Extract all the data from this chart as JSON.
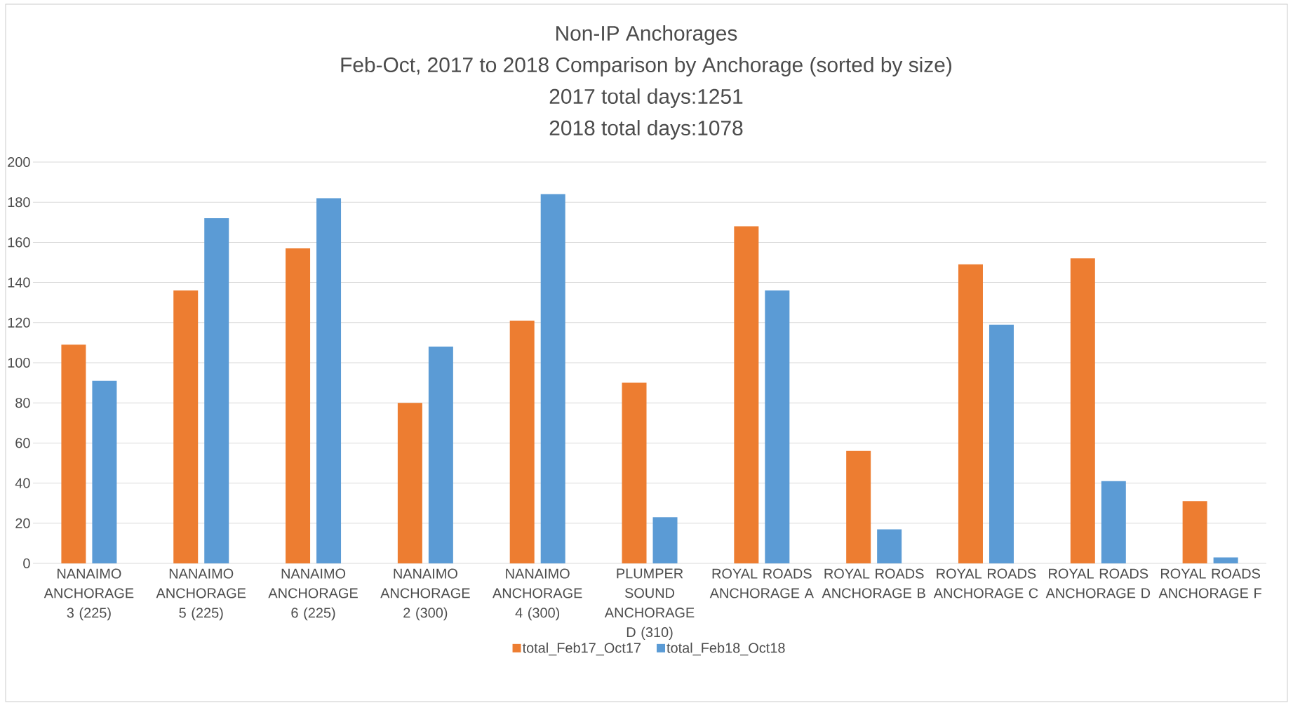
{
  "chart_data": {
    "type": "bar",
    "title": "Non-IP Anchorages",
    "subtitle": "Feb-Oct, 2017 to 2018 Comparison by Anchorage (sorted by size)",
    "annotations": [
      "2017 total days:1251",
      "2018 total days:1078"
    ],
    "categories": [
      "NANAIMO ANCHORAGE 3 (225)",
      "NANAIMO ANCHORAGE 5 (225)",
      "NANAIMO ANCHORAGE 6 (225)",
      "NANAIMO ANCHORAGE 2 (300)",
      "NANAIMO ANCHORAGE 4 (300)",
      "PLUMPER SOUND ANCHORAGE D (310)",
      "ROYAL ROADS ANCHORAGE A",
      "ROYAL ROADS ANCHORAGE B",
      "ROYAL ROADS ANCHORAGE C",
      "ROYAL ROADS ANCHORAGE D",
      "ROYAL ROADS ANCHORAGE F"
    ],
    "series": [
      {
        "name": "total_Feb17_Oct17",
        "color": "#ed7d31",
        "values": [
          109,
          136,
          157,
          80,
          121,
          90,
          168,
          56,
          149,
          152,
          31
        ]
      },
      {
        "name": "total_Feb18_Oct18",
        "color": "#5b9bd5",
        "values": [
          91,
          172,
          182,
          108,
          184,
          23,
          136,
          17,
          119,
          41,
          3
        ]
      }
    ],
    "ylim": [
      0,
      200
    ],
    "yticks": [
      0,
      20,
      40,
      60,
      80,
      100,
      120,
      140,
      160,
      180,
      200
    ],
    "grid": "y",
    "legend": "bottom"
  }
}
